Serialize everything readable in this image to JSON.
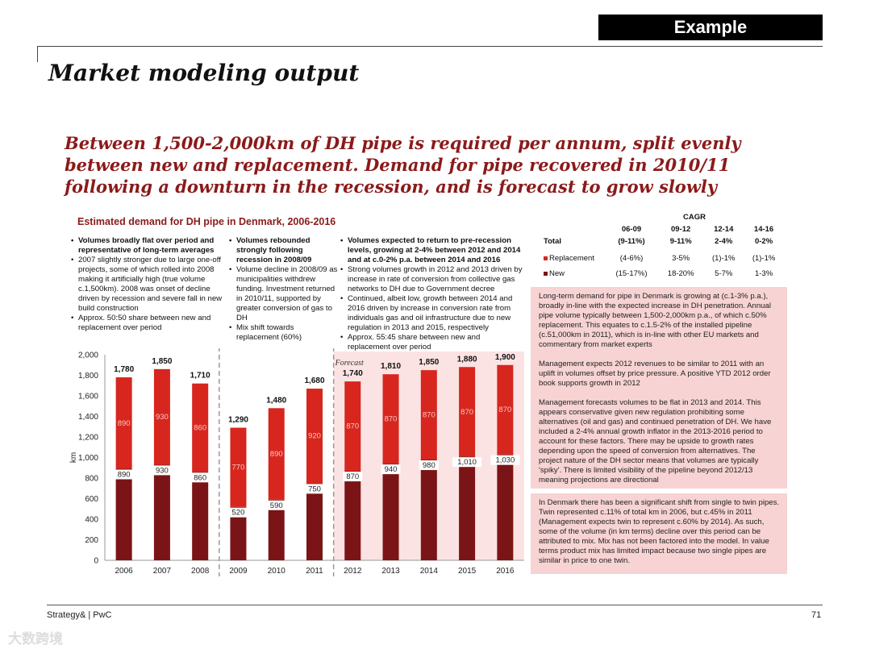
{
  "header": {
    "badge": "Example",
    "title": "Market modeling output"
  },
  "headline": "Between 1,500-2,000km of DH pipe is required per annum, split evenly between new and replacement. Demand for pipe recovered in 2010/11 following a downturn in the recession, and is forecast to grow slowly",
  "chart_title": "Estimated demand for DH pipe in Denmark, 2006-2016",
  "bullets": {
    "group1": [
      {
        "text": "Volumes broadly flat over period and representative of long-term averages",
        "bold": true
      },
      {
        "text": "2007 slightly stronger due to large one-off projects, some of which rolled into 2008 making it artificially high (true volume c.1,500km). 2008 was onset of decline driven by recession and severe fall in new build construction",
        "bold": false
      },
      {
        "text": "Approx. 50:50 share between new and replacement over period",
        "bold": false
      }
    ],
    "group2": [
      {
        "text": "Volumes rebounded strongly following recession in 2008/09",
        "bold": true
      },
      {
        "text": "Volume decline in 2008/09 as municipalities withdrew funding. Investment returned in 2010/11, supported by greater conversion of gas to DH",
        "bold": false
      },
      {
        "text": "Mix shift towards replacement (60%)",
        "bold": false
      }
    ],
    "group3": [
      {
        "text": "Volumes expected to return to pre-recession levels, growing at 2-4% between 2012 and 2014 and at c.0-2% p.a. between 2014 and 2016",
        "bold": true
      },
      {
        "text": "Strong volumes growth in 2012 and 2013 driven by increase in rate of conversion from collective gas networks to DH due to Government decree",
        "bold": false
      },
      {
        "text": "Continued, albeit low, growth between 2014 and 2016 driven by increase in conversion rate from individuals gas and oil infrastructure due to new regulation in 2013 and 2015, respectively",
        "bold": false
      },
      {
        "text": "Approx. 55:45 share between new and replacement over period",
        "bold": false
      }
    ]
  },
  "cagr": {
    "title": "CAGR",
    "periods": [
      "06-09",
      "09-12",
      "12-14",
      "14-16"
    ],
    "rows": [
      {
        "label": "Total",
        "values": [
          "(9-11%)",
          "9-11%",
          "2-4%",
          "0-2%"
        ],
        "swatch": ""
      },
      {
        "label": "Replacement",
        "values": [
          "(4-6%)",
          "3-5%",
          "(1)-1%",
          "(1)-1%"
        ],
        "swatch": "#d7261e"
      },
      {
        "label": "New",
        "values": [
          "(15-17%)",
          "18-20%",
          "5-7%",
          "1-3%"
        ],
        "swatch": "#7b1416"
      }
    ]
  },
  "commentary": {
    "box1": [
      "Long-term demand for pipe in Denmark is growing at (c.1-3% p.a.), broadly in-line with the expected increase in DH penetration. Annual pipe volume typically between 1,500-2,000km p.a., of which c.50% replacement. This equates to c.1.5-2% of the installed pipeline (c.51,000km in 2011), which is in-line with other EU markets and commentary from market experts",
      "Management expects 2012 revenues to be similar to 2011 with an uplift in volumes offset by price pressure. A positive YTD 2012 order book supports growth in 2012",
      "Management forecasts volumes to be flat in 2013 and 2014. This appears conservative given new regulation prohibiting some alternatives (oil and gas) and continued penetration of DH. We have included a 2-4% annual growth inflator in the 2013-2016 period to account for these factors. There may be upside to growth rates depending upon the speed of conversion from alternatives. The project nature of the DH sector means that volumes are typically 'spiky'. There is limited visibility of the pipeline beyond 2012/13 meaning projections are directional"
    ],
    "box2": [
      "In Denmark there has been a significant shift from single to twin pipes. Twin represented c.11% of total km in 2006, but c.45% in 2011 (Management expects twin to represent c.60% by 2014). As such, some of the volume (in km terms) decline over this period can be attributed to mix. Mix has not been factored into the model. In value terms product mix has limited impact because two single pipes are similar in price to one twin."
    ]
  },
  "footer": {
    "left": "Strategy& | PwC",
    "page": "71"
  },
  "watermark": "大数跨境",
  "chart_data": {
    "type": "bar",
    "stacked": true,
    "categories": [
      "2006",
      "2007",
      "2008",
      "2009",
      "2010",
      "2011",
      "2012",
      "2013",
      "2014",
      "2015",
      "2016"
    ],
    "series": [
      {
        "name": "New",
        "values": [
          890,
          930,
          860,
          520,
          590,
          750,
          870,
          940,
          980,
          1010,
          1030
        ],
        "color": "#7b1416"
      },
      {
        "name": "Replacement",
        "values": [
          890,
          930,
          860,
          770,
          890,
          920,
          870,
          870,
          870,
          870,
          870
        ],
        "color": "#d7261e"
      }
    ],
    "totals": [
      1780,
      1850,
      1710,
      1290,
      1480,
      1680,
      1740,
      1810,
      1850,
      1880,
      1900
    ],
    "ylabel": "km",
    "ylim": [
      0,
      2000
    ],
    "yticks": [
      0,
      200,
      400,
      600,
      800,
      1000,
      1200,
      1400,
      1600,
      1800,
      2000
    ],
    "ytick_labels": [
      "0",
      "200",
      "400",
      "600",
      "800",
      "1,000",
      "1,200",
      "1,400",
      "1,600",
      "1,800",
      "2,000"
    ],
    "totals_labels": [
      "1,780",
      "1,850",
      "1,710",
      "1,290",
      "1,480",
      "1,680",
      "1,740",
      "1,810",
      "1,850",
      "1,880",
      "1,900"
    ],
    "new_labels": [
      "890",
      "930",
      "860",
      "520",
      "590",
      "750",
      "870",
      "940",
      "980",
      "1,010",
      "1,030"
    ],
    "replacement_labels": [
      "890",
      "930",
      "860",
      "770",
      "890",
      "920",
      "870",
      "870",
      "870",
      "870",
      "870"
    ],
    "forecast_label": "Forecast",
    "forecast_start_index": 6,
    "divider_after": [
      2,
      5
    ],
    "forecast_shade": "#fbe3e3"
  }
}
